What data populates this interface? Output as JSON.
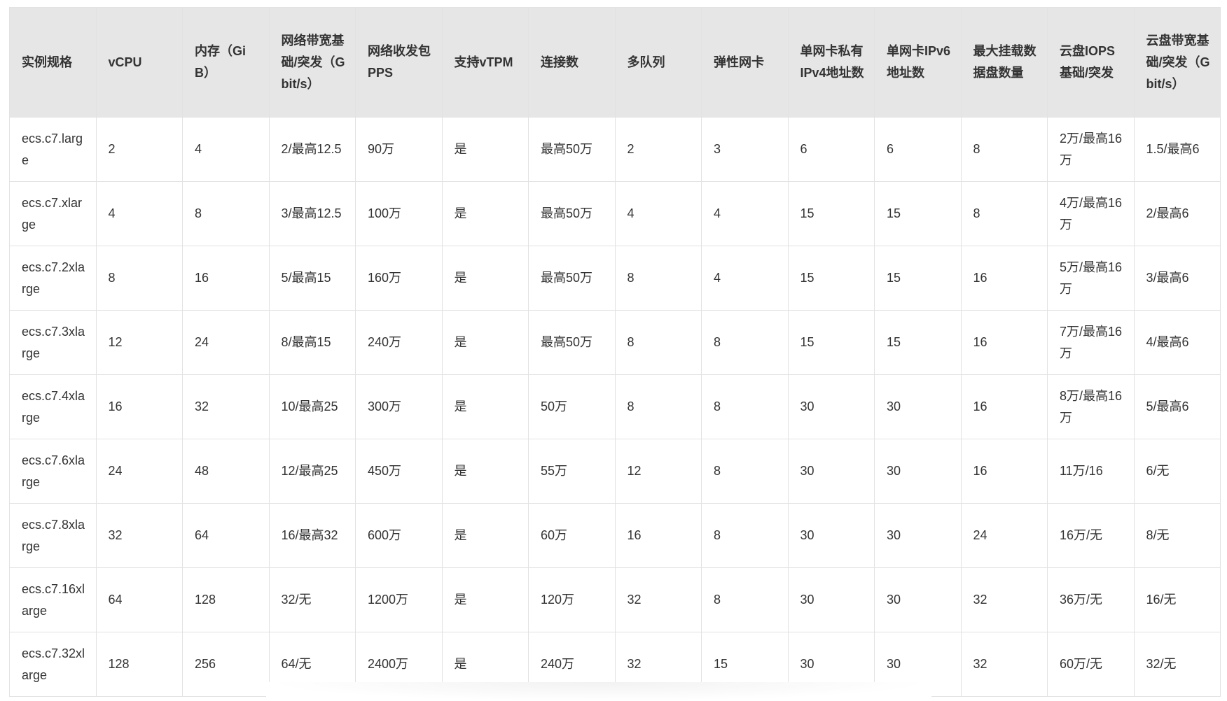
{
  "table": {
    "headers": [
      "实例规格",
      "vCPU",
      "内存（GiB）",
      "网络带宽基础/突发（Gbit/s）",
      "网络收发包PPS",
      "支持vTPM",
      "连接数",
      "多队列",
      "弹性网卡",
      "单网卡私有IPv4地址数",
      "单网卡IPv6地址数",
      "最大挂载数据盘数量",
      "云盘IOPS基础/突发",
      "云盘带宽基础/突发（Gbit/s）"
    ],
    "rows": [
      [
        "ecs.c7.large",
        "2",
        "4",
        "2/最高12.5",
        "90万",
        "是",
        "最高50万",
        "2",
        "3",
        "6",
        "6",
        "8",
        "2万/最高16万",
        "1.5/最高6"
      ],
      [
        "ecs.c7.xlarge",
        "4",
        "8",
        "3/最高12.5",
        "100万",
        "是",
        "最高50万",
        "4",
        "4",
        "15",
        "15",
        "8",
        "4万/最高16万",
        "2/最高6"
      ],
      [
        "ecs.c7.2xlarge",
        "8",
        "16",
        "5/最高15",
        "160万",
        "是",
        "最高50万",
        "8",
        "4",
        "15",
        "15",
        "16",
        "5万/最高16万",
        "3/最高6"
      ],
      [
        "ecs.c7.3xlarge",
        "12",
        "24",
        "8/最高15",
        "240万",
        "是",
        "最高50万",
        "8",
        "8",
        "15",
        "15",
        "16",
        "7万/最高16万",
        "4/最高6"
      ],
      [
        "ecs.c7.4xlarge",
        "16",
        "32",
        "10/最高25",
        "300万",
        "是",
        "50万",
        "8",
        "8",
        "30",
        "30",
        "16",
        "8万/最高16万",
        "5/最高6"
      ],
      [
        "ecs.c7.6xlarge",
        "24",
        "48",
        "12/最高25",
        "450万",
        "是",
        "55万",
        "12",
        "8",
        "30",
        "30",
        "16",
        "11万/16",
        "6/无"
      ],
      [
        "ecs.c7.8xlarge",
        "32",
        "64",
        "16/最高32",
        "600万",
        "是",
        "60万",
        "16",
        "8",
        "30",
        "30",
        "24",
        "16万/无",
        "8/无"
      ],
      [
        "ecs.c7.16xlarge",
        "64",
        "128",
        "32/无",
        "1200万",
        "是",
        "120万",
        "32",
        "8",
        "30",
        "30",
        "32",
        "36万/无",
        "16/无"
      ],
      [
        "ecs.c7.32xlarge",
        "128",
        "256",
        "64/无",
        "2400万",
        "是",
        "240万",
        "32",
        "15",
        "30",
        "30",
        "32",
        "60万/无",
        "32/无"
      ]
    ]
  }
}
